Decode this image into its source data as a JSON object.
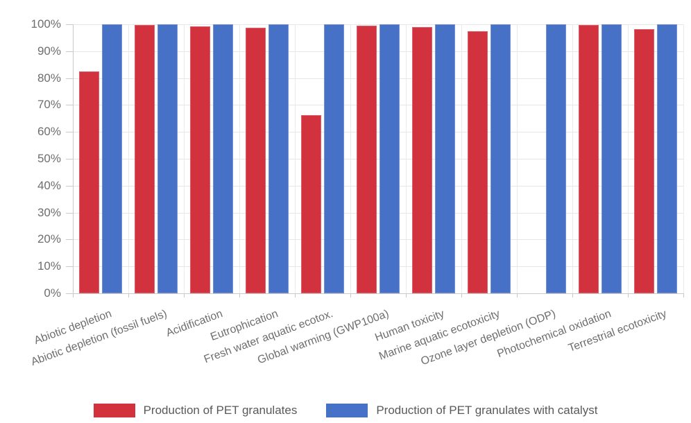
{
  "chart_data": {
    "type": "bar",
    "title": "",
    "xlabel": "",
    "ylabel": "",
    "ylim": [
      0,
      100
    ],
    "ytick_step": 10,
    "ytick_labels": [
      "0%",
      "10%",
      "20%",
      "30%",
      "40%",
      "50%",
      "60%",
      "70%",
      "80%",
      "90%",
      "100%"
    ],
    "grid": true,
    "legend_position": "bottom",
    "categories": [
      "Abiotic depletion",
      "Abiotic depletion (fossil fuels)",
      "Acidification",
      "Eutrophication",
      "Fresh water aquatic ecotox.",
      "Global warming (GWP100a)",
      "Human toxicity",
      "Marine aquatic ecotoxicity",
      "Ozone layer depletion (ODP)",
      "Photochemical oxidation",
      "Terrestrial ecotoxicity"
    ],
    "series": [
      {
        "name": "Production of PET granulates",
        "color": "#d2323e",
        "border_color": "#dd5f69",
        "values": [
          82.5,
          99.7,
          99.3,
          98.7,
          66.3,
          99.6,
          99.0,
          97.3,
          0,
          99.7,
          98.3
        ]
      },
      {
        "name": "Production of PET granulates with catalyst",
        "color": "#4671c6",
        "border_color": "#7592d4",
        "values": [
          100,
          100,
          100,
          100,
          100,
          100,
          100,
          100,
          100,
          100,
          100
        ]
      }
    ]
  },
  "colors": {
    "background": "#ffffff",
    "gridline": "#e6e6e6",
    "axis_line": "#c9c9c9",
    "tick_label": "#6e6e6e",
    "legend_label": "#595959"
  }
}
